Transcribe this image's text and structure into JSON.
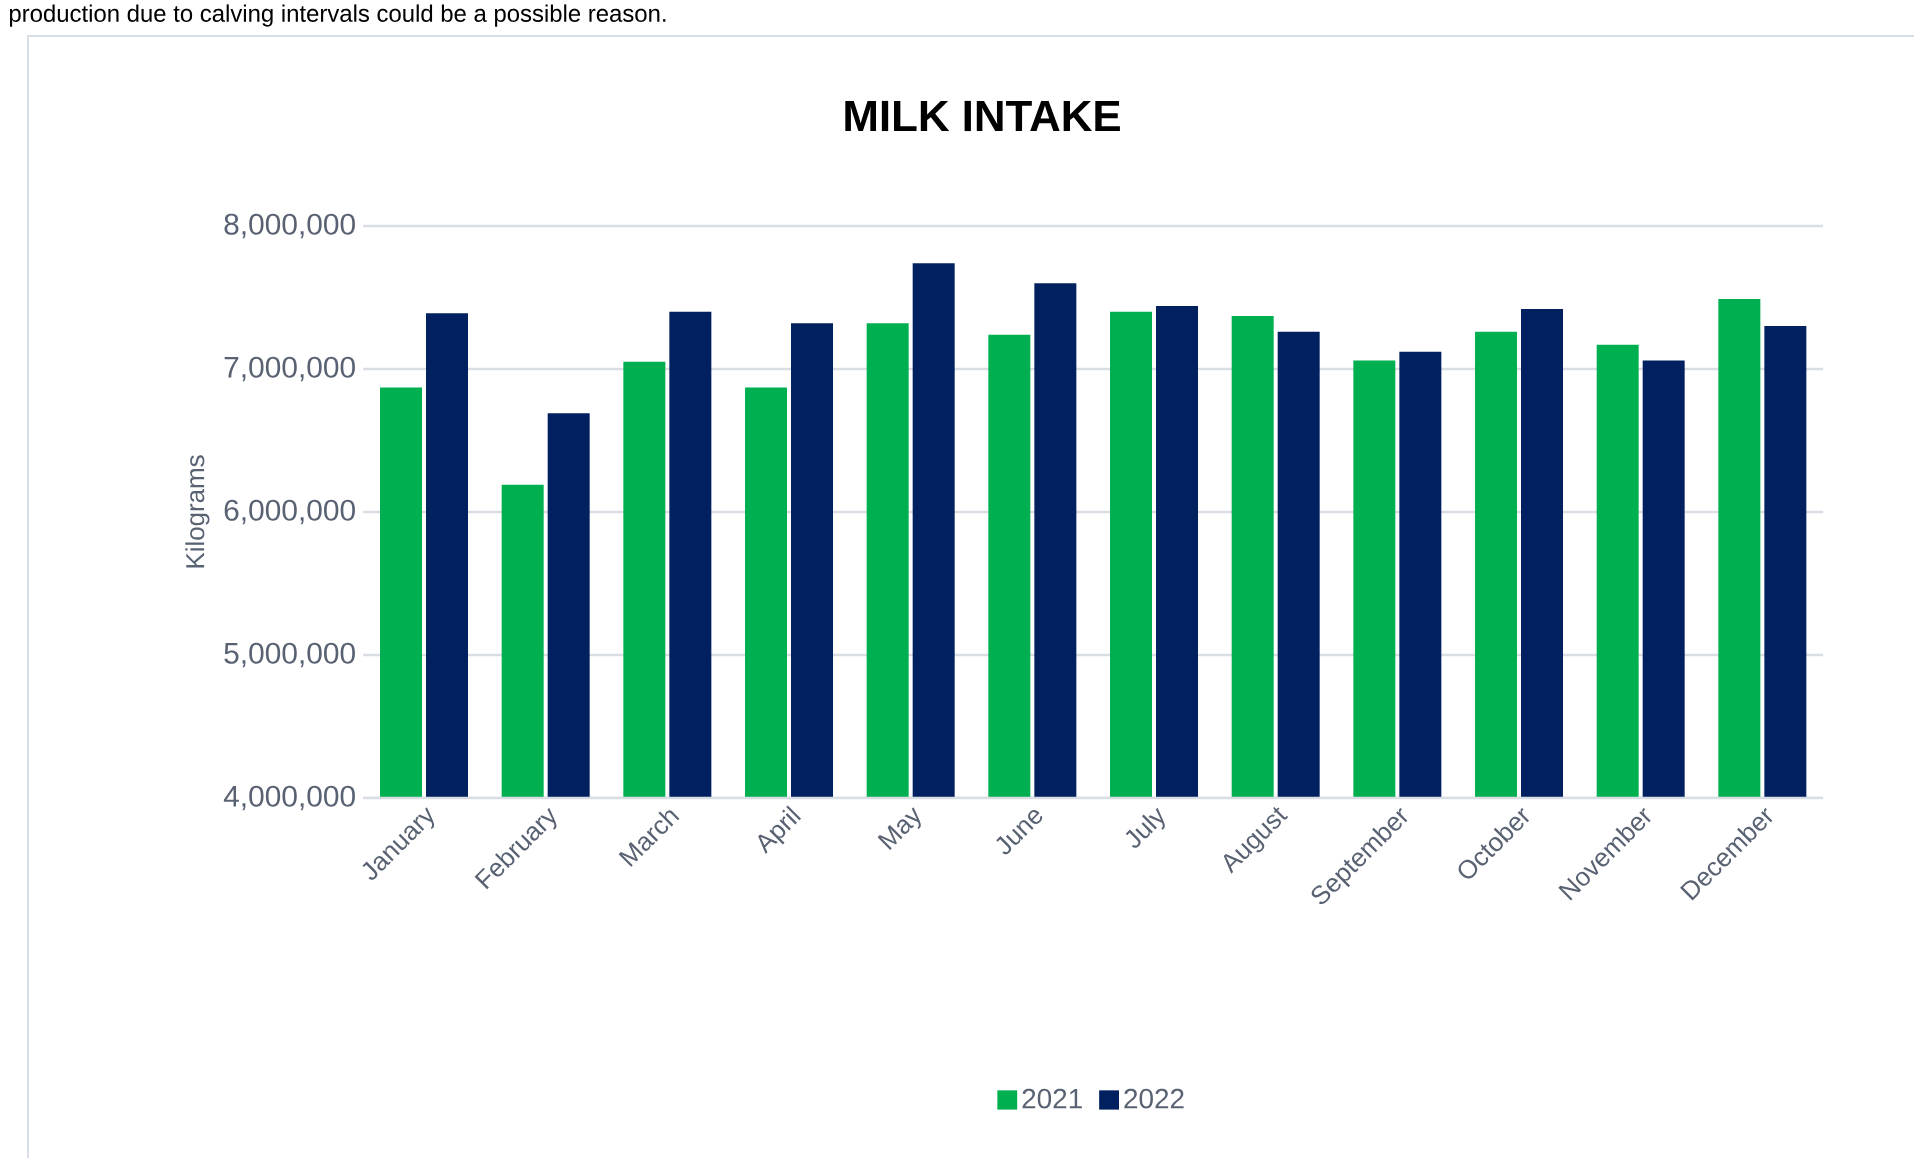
{
  "chart_data": {
    "type": "bar",
    "title": "MILK INTAKE",
    "ylabel": "Kilograms",
    "annotations": [
      "production due to calving intervals could be a possible reason."
    ],
    "categories": [
      "January",
      "February",
      "March",
      "April",
      "May",
      "June",
      "July",
      "August",
      "September",
      "October",
      "November",
      "December"
    ],
    "series": [
      {
        "name": "2021",
        "color": "#00b050",
        "values": [
          6870000,
          6190000,
          7050000,
          6870000,
          7320000,
          7240000,
          7400000,
          7370000,
          7060000,
          7260000,
          7170000,
          7490000
        ]
      },
      {
        "name": "2022",
        "color": "#002060",
        "values": [
          7390000,
          6690000,
          7400000,
          7320000,
          7740000,
          7600000,
          7440000,
          7260000,
          7120000,
          7420000,
          7060000,
          7300000
        ]
      }
    ],
    "ylim": [
      4000000,
      8000000
    ],
    "yticks": [
      {
        "value": 4000000,
        "label": "4,000,000"
      },
      {
        "value": 5000000,
        "label": "5,000,000"
      },
      {
        "value": 6000000,
        "label": "6,000,000"
      },
      {
        "value": 7000000,
        "label": "7,000,000"
      },
      {
        "value": 8000000,
        "label": "8,000,000"
      }
    ],
    "grid": "y",
    "legend": "bottom"
  }
}
